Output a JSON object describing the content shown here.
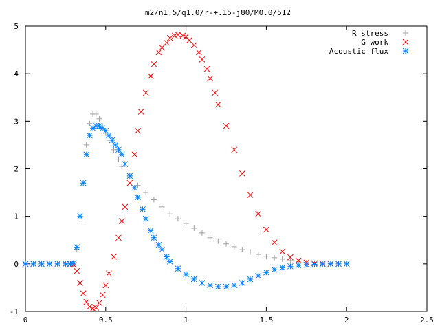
{
  "chart_data": {
    "type": "scatter",
    "title": "m2/n1.5/q1.0/r-+.15-j80/M0.0/512",
    "xlabel": "",
    "ylabel": "",
    "xlim": [
      0,
      2.5
    ],
    "ylim": [
      -1,
      5
    ],
    "x_ticks": [
      "0",
      "0.5",
      "1",
      "1.5",
      "2",
      "2.5"
    ],
    "y_ticks": [
      "-1",
      "0",
      "1",
      "2",
      "3",
      "4",
      "5"
    ],
    "x_tick_values": [
      0,
      0.5,
      1,
      1.5,
      2,
      2.5
    ],
    "y_tick_values": [
      -1,
      0,
      1,
      2,
      3,
      4,
      5
    ],
    "grid": false,
    "legend_position": "top-right",
    "series": [
      {
        "name": "R stress",
        "marker": "+",
        "color": "#a0a0a0",
        "x": [
          0.0,
          0.05,
          0.1,
          0.15,
          0.2,
          0.25,
          0.28,
          0.3,
          0.32,
          0.34,
          0.36,
          0.38,
          0.4,
          0.42,
          0.44,
          0.46,
          0.48,
          0.5,
          0.52,
          0.55,
          0.58,
          0.6,
          0.65,
          0.7,
          0.75,
          0.8,
          0.85,
          0.9,
          0.95,
          1.0,
          1.05,
          1.1,
          1.15,
          1.2,
          1.25,
          1.3,
          1.35,
          1.4,
          1.45,
          1.5,
          1.55,
          1.6,
          1.65,
          1.7,
          1.75,
          1.8,
          1.85,
          1.9,
          1.95,
          2.0
        ],
        "y": [
          0,
          0,
          0,
          0,
          0,
          0,
          0,
          0.02,
          0.3,
          0.9,
          1.7,
          2.5,
          2.95,
          3.15,
          3.15,
          3.05,
          2.9,
          2.75,
          2.6,
          2.4,
          2.2,
          2.05,
          1.85,
          1.65,
          1.5,
          1.35,
          1.2,
          1.05,
          0.95,
          0.85,
          0.75,
          0.65,
          0.55,
          0.48,
          0.42,
          0.36,
          0.3,
          0.25,
          0.2,
          0.16,
          0.13,
          0.1,
          0.07,
          0.05,
          0.03,
          0.02,
          0.01,
          0.005,
          0.002,
          0
        ]
      },
      {
        "name": "G work",
        "marker": "x",
        "color": "#ff0000",
        "x": [
          0.0,
          0.05,
          0.1,
          0.15,
          0.2,
          0.25,
          0.28,
          0.3,
          0.32,
          0.34,
          0.36,
          0.38,
          0.4,
          0.42,
          0.44,
          0.46,
          0.48,
          0.5,
          0.52,
          0.55,
          0.58,
          0.6,
          0.62,
          0.65,
          0.68,
          0.7,
          0.72,
          0.75,
          0.78,
          0.8,
          0.83,
          0.85,
          0.88,
          0.9,
          0.93,
          0.95,
          0.98,
          1.0,
          1.02,
          1.05,
          1.08,
          1.1,
          1.13,
          1.15,
          1.18,
          1.2,
          1.25,
          1.3,
          1.35,
          1.4,
          1.45,
          1.5,
          1.55,
          1.6,
          1.65,
          1.7,
          1.75,
          1.8,
          1.85,
          1.9,
          1.95,
          2.0
        ],
        "y": [
          0,
          0,
          0,
          0,
          0,
          0,
          0,
          -0.02,
          -0.15,
          -0.4,
          -0.62,
          -0.8,
          -0.9,
          -0.94,
          -0.92,
          -0.82,
          -0.65,
          -0.45,
          -0.2,
          0.15,
          0.55,
          0.9,
          1.2,
          1.7,
          2.3,
          2.8,
          3.2,
          3.6,
          3.95,
          4.2,
          4.45,
          4.55,
          4.65,
          4.75,
          4.8,
          4.82,
          4.8,
          4.78,
          4.7,
          4.6,
          4.45,
          4.3,
          4.1,
          3.9,
          3.6,
          3.35,
          2.9,
          2.4,
          1.9,
          1.45,
          1.05,
          0.72,
          0.45,
          0.26,
          0.14,
          0.07,
          0.03,
          0.015,
          0.005,
          0.002,
          0,
          0
        ]
      },
      {
        "name": "Acoustic flux",
        "marker": "*",
        "color": "#0080ff",
        "x": [
          0.0,
          0.05,
          0.1,
          0.15,
          0.2,
          0.25,
          0.28,
          0.3,
          0.32,
          0.34,
          0.36,
          0.38,
          0.4,
          0.42,
          0.44,
          0.46,
          0.48,
          0.5,
          0.52,
          0.54,
          0.56,
          0.58,
          0.6,
          0.62,
          0.65,
          0.68,
          0.7,
          0.73,
          0.75,
          0.78,
          0.8,
          0.83,
          0.85,
          0.88,
          0.9,
          0.95,
          1.0,
          1.05,
          1.1,
          1.15,
          1.2,
          1.25,
          1.3,
          1.35,
          1.4,
          1.45,
          1.5,
          1.55,
          1.6,
          1.65,
          1.7,
          1.75,
          1.8,
          1.85,
          1.9,
          1.95,
          2.0
        ],
        "y": [
          0,
          0,
          0,
          0,
          0,
          0,
          0,
          0.02,
          0.35,
          1.0,
          1.7,
          2.3,
          2.7,
          2.85,
          2.9,
          2.9,
          2.85,
          2.8,
          2.7,
          2.6,
          2.5,
          2.4,
          2.3,
          2.1,
          1.85,
          1.6,
          1.4,
          1.15,
          0.95,
          0.7,
          0.55,
          0.4,
          0.3,
          0.15,
          0.05,
          -0.1,
          -0.22,
          -0.32,
          -0.4,
          -0.45,
          -0.48,
          -0.48,
          -0.45,
          -0.4,
          -0.32,
          -0.25,
          -0.18,
          -0.12,
          -0.08,
          -0.05,
          -0.03,
          -0.02,
          -0.01,
          -0.005,
          0,
          0,
          0
        ]
      }
    ]
  }
}
